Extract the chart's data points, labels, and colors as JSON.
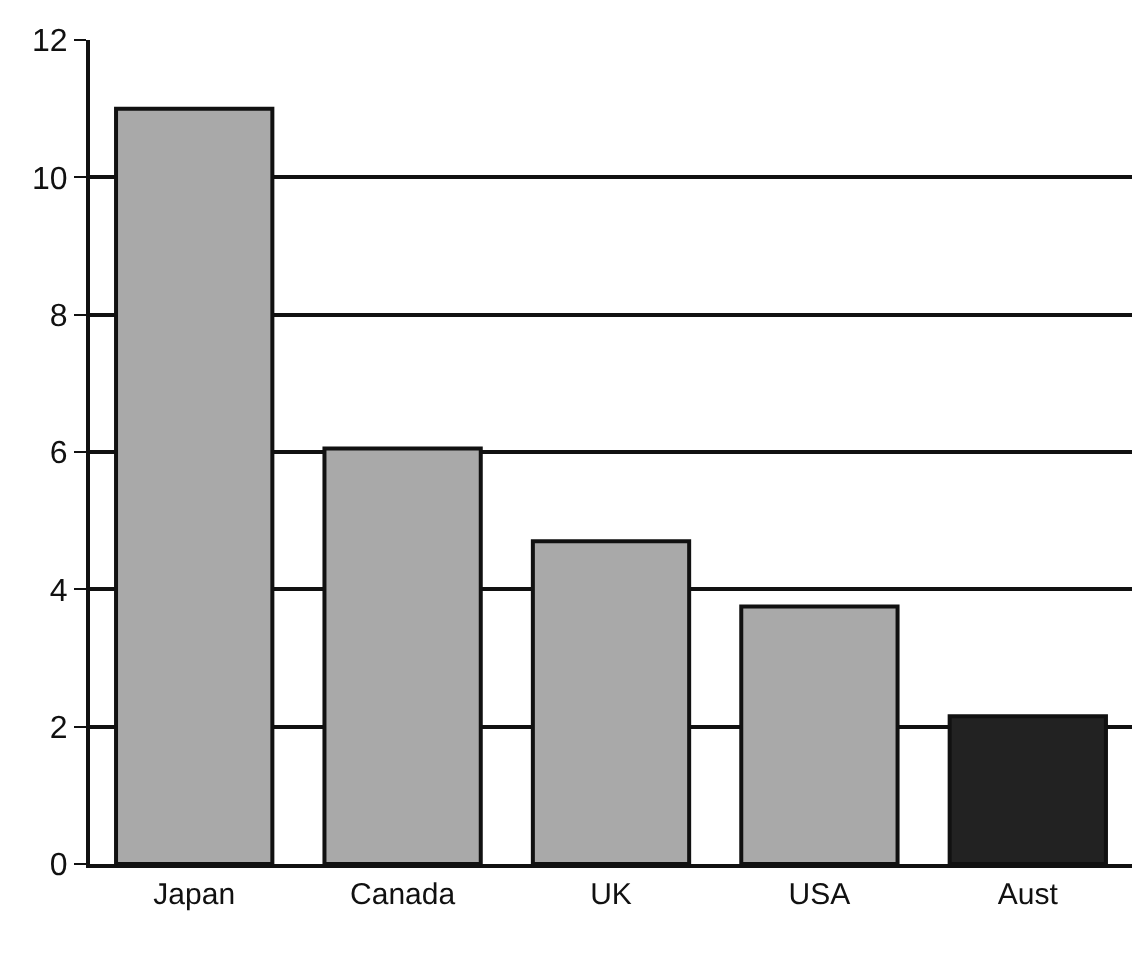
{
  "chart_data": {
    "type": "bar",
    "categories": [
      "Japan",
      "Canada",
      "UK",
      "USA",
      "Aust"
    ],
    "values": [
      11,
      6.05,
      4.7,
      3.75,
      2.15
    ],
    "colors": [
      "#a9a9a9",
      "#a9a9a9",
      "#a9a9a9",
      "#a9a9a9",
      "#222222"
    ],
    "ylim": [
      0,
      12
    ],
    "yticks": [
      0,
      2,
      4,
      6,
      8,
      10,
      12
    ],
    "grid": "y"
  }
}
